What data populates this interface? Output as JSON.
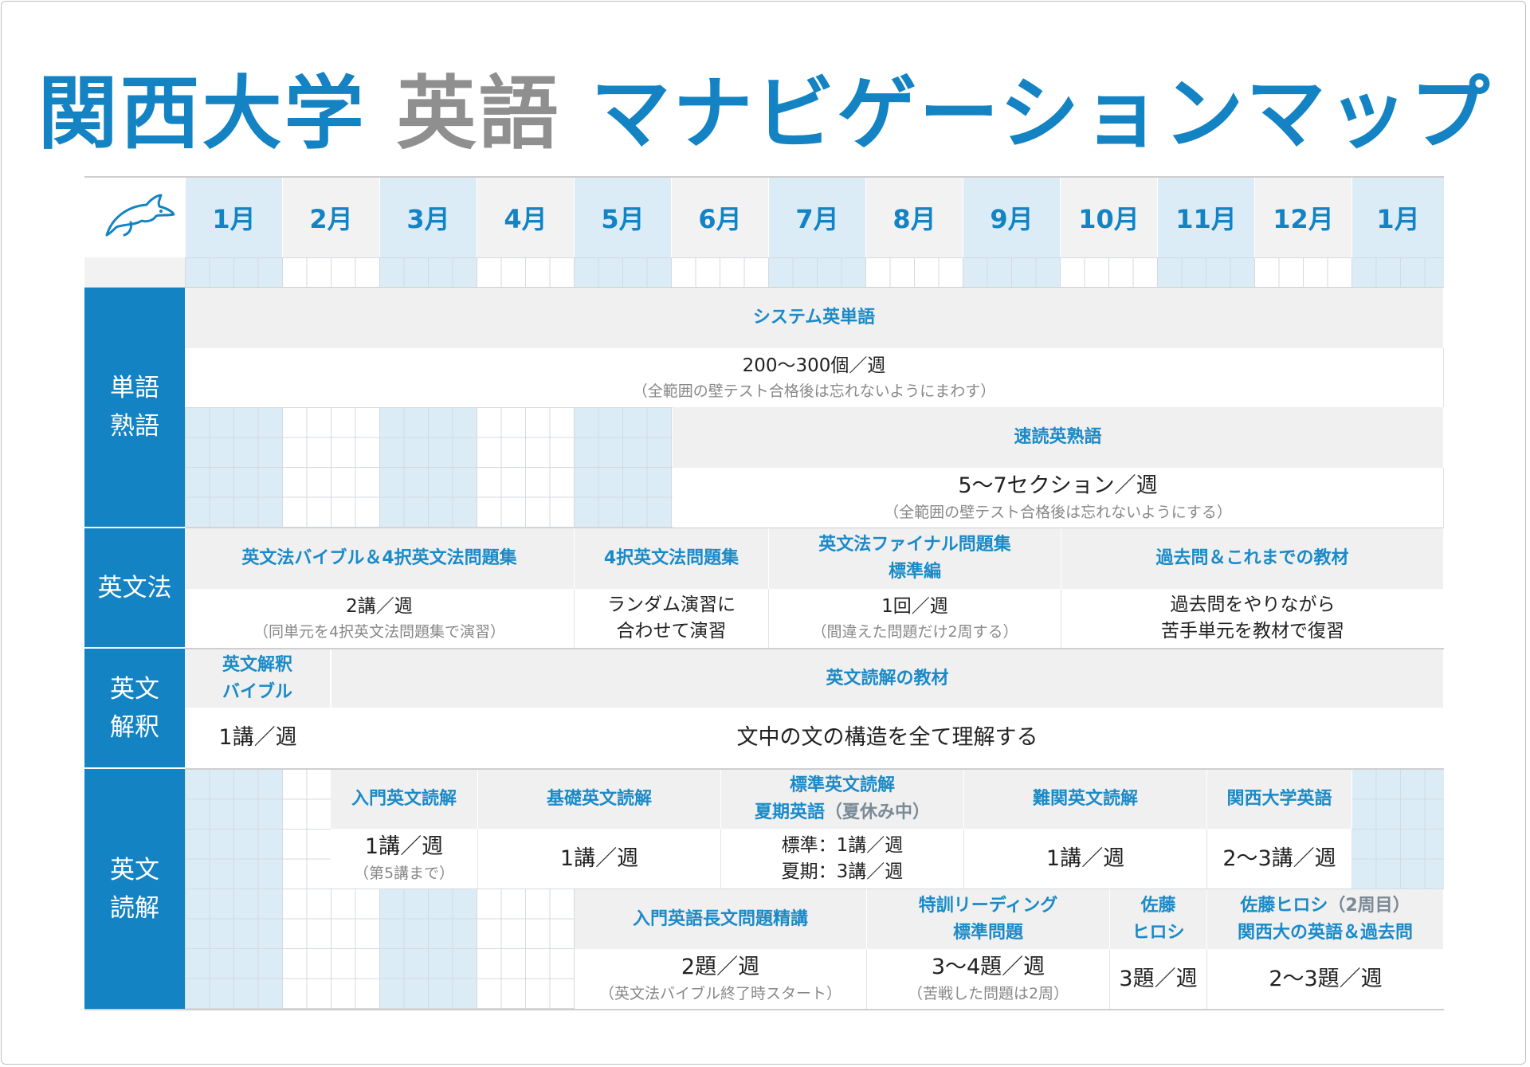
{
  "title": {
    "part1": "関西大学",
    "part2": "英語",
    "part3": "マナビゲーションマップ"
  },
  "logo": {
    "icon": "dolphin-icon",
    "color": "#1383c3"
  },
  "months": [
    "1月",
    "2月",
    "3月",
    "4月",
    "5月",
    "6月",
    "7月",
    "8月",
    "9月",
    "10月",
    "11月",
    "12月",
    "1月"
  ],
  "colors": {
    "accent": "#1383c3",
    "highlight": "#dbecf7",
    "header_bg": "#f0f0f0"
  },
  "categories": {
    "vocab": [
      "単語",
      "熟語"
    ],
    "grammar": [
      "英文法"
    ],
    "interpretation": [
      "英文",
      "解釈"
    ],
    "reading": [
      "英文",
      "読解"
    ]
  },
  "vocab": {
    "system": {
      "title": "システム英単語",
      "main": "200〜300個／週",
      "note": "（全範囲の壁テスト合格後は忘れないようにまわす）"
    },
    "sokudoku": {
      "title": "速読英熟語",
      "main": "5〜7セクション／週",
      "note": "（全範囲の壁テスト合格後は忘れないようにする）"
    }
  },
  "grammar": [
    {
      "title": "英文法バイブル＆4択英文法問題集",
      "main": "2講／週",
      "note": "（同単元を4択英文法問題集で演習）"
    },
    {
      "title": "4択英文法問題集",
      "line1": "ランダム演習に",
      "line2": "合わせて演習"
    },
    {
      "title1": "英文法ファイナル問題集",
      "title2": "標準編",
      "main": "1回／週",
      "note": "（間違えた問題だけ2周する）"
    },
    {
      "title": "過去問＆これまでの教材",
      "line1": "過去問をやりながら",
      "line2": "苦手単元を教材で復習"
    }
  ],
  "interpretation": {
    "bible": {
      "title1": "英文解釈",
      "title2": "バイブル",
      "main": "1講／週"
    },
    "material": {
      "title": "英文読解の教材",
      "main": "文中の文の構造を全て理解する"
    }
  },
  "reading_row1": [
    {
      "title": "入門英文読解",
      "main": "1講／週",
      "note": "（第5講まで）"
    },
    {
      "title": "基礎英文読解",
      "main": "1講／週"
    },
    {
      "title1": "標準英文読解",
      "title2": "夏期英語",
      "title2_note": "（夏休み中）",
      "line1": "標準：1講／週",
      "line2": "夏期：3講／週"
    },
    {
      "title": "難関英文読解",
      "main": "1講／週"
    },
    {
      "title": "関西大学英語",
      "main": "2〜3講／週"
    }
  ],
  "reading_row2": [
    {
      "title": "入門英語長文問題精講",
      "main": "2題／週",
      "note": "（英文法バイブル終了時スタート）"
    },
    {
      "title1": "特訓リーディング",
      "title2": "標準問題",
      "main": "3〜4題／週",
      "note": "（苦戦した問題は2周）"
    },
    {
      "title1": "佐藤",
      "title2": "ヒロシ",
      "main": "3題／週"
    },
    {
      "title1": "佐藤ヒロシ",
      "title1_note": "（2周目）",
      "title2": "関西大の英語＆過去問",
      "main": "2〜3題／週"
    }
  ]
}
